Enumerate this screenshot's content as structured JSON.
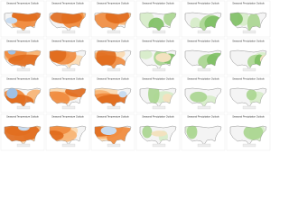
{
  "panels": [
    [
      "Seasonal Temperature Outlook",
      "Seasonal Temperature Outlook",
      "Seasonal Temperature Outlook",
      "Seasonal Precipitation Outlook",
      "Seasonal Precipitation Outlook",
      "Seasonal Precipitation Outlook"
    ],
    [
      "Seasonal Temperature Outlook",
      "Seasonal Temperature Outlook",
      "Seasonal Temperature Outlook",
      "Seasonal Precipitation Outlook",
      "Seasonal Precipitation Outlook",
      "Seasonal Precipitation Outlook"
    ],
    [
      "Seasonal Temperature Outlook",
      "Seasonal Temperature Outlook",
      "Seasonal Temperature Outlook",
      "Seasonal Precipitation Outlook",
      "Seasonal Precipitation Outlook",
      "Seasonal Precipitation Outlook"
    ],
    [
      "Seasonal Temperature Outlook",
      "Seasonal Temperature Outlook",
      "Seasonal Temperature Outlook",
      "Seasonal Precipitation Outlook",
      "Seasonal Precipitation Outlook",
      "Seasonal Precipitation Outlook"
    ]
  ]
}
